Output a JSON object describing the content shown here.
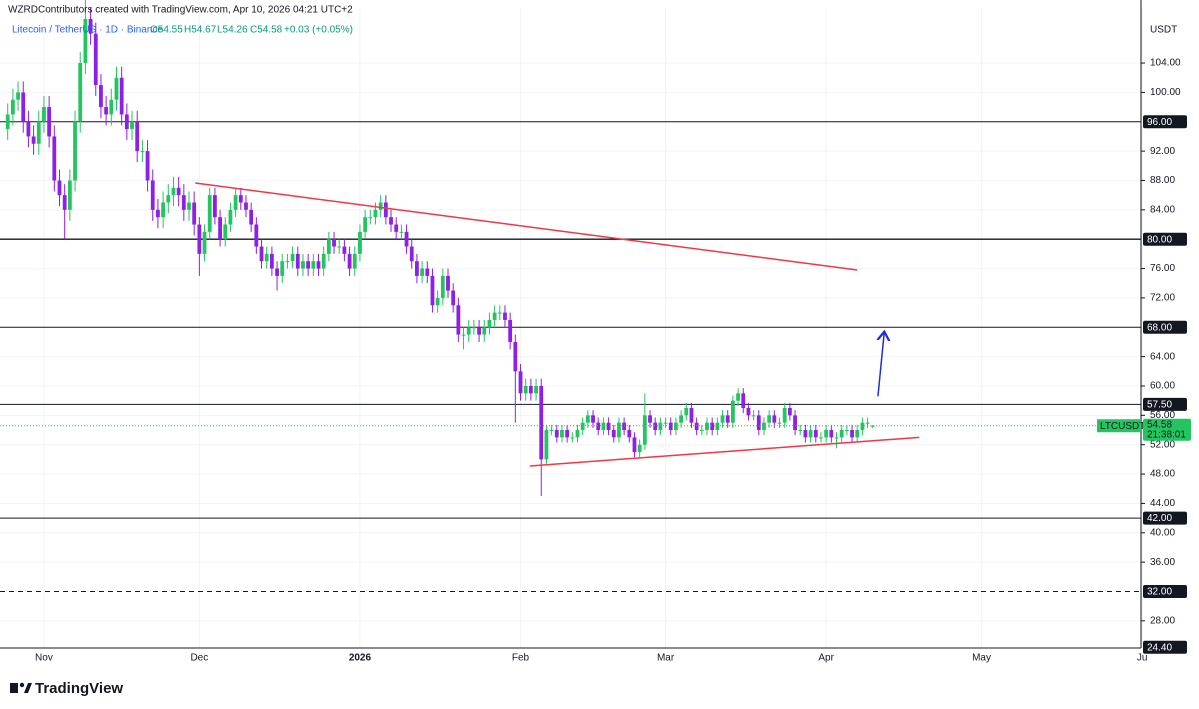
{
  "header": {
    "attribution": "WZRDContributors created with TradingView.com, Apr 10, 2026 04:21 UTC+2",
    "symbol": "Litecoin / TetherUS · 1D · Binance",
    "ohlc": [
      "O54.55",
      "H54.67",
      "L54.26",
      "C54.58",
      "+0.03 (+0.05%)"
    ]
  },
  "footer": {
    "brand": "TradingView"
  },
  "chart_data": {
    "type": "candlestick",
    "y_unit": "USDT",
    "up_color": "#22c55e",
    "down_color": "#8f1ee6",
    "grid": true,
    "ylim": [
      24.3,
      111.5
    ],
    "yticks": [
      {
        "value": 104,
        "label": "104.00"
      },
      {
        "value": 100,
        "label": "100.00"
      },
      {
        "value": 92,
        "label": "92.00"
      },
      {
        "value": 88,
        "label": "88.00"
      },
      {
        "value": 84,
        "label": "84.00"
      },
      {
        "value": 76,
        "label": "76.00"
      },
      {
        "value": 72,
        "label": "72.00"
      },
      {
        "value": 64,
        "label": "64.00"
      },
      {
        "value": 60,
        "label": "60.00"
      },
      {
        "value": 56,
        "label": "56.00"
      },
      {
        "value": 52,
        "label": "52.00"
      },
      {
        "value": 48,
        "label": "48.00"
      },
      {
        "value": 44,
        "label": "44.00"
      },
      {
        "value": 40,
        "label": "40.00"
      },
      {
        "value": 36,
        "label": "36.00"
      },
      {
        "value": 28,
        "label": "28.00"
      }
    ],
    "hlines": [
      {
        "value": 96,
        "label": "96.00",
        "style": "solid"
      },
      {
        "value": 80,
        "label": "80.00",
        "style": "solid"
      },
      {
        "value": 68,
        "label": "68.00",
        "style": "solid"
      },
      {
        "value": 57.5,
        "label": "57.50",
        "style": "solid"
      },
      {
        "value": 42,
        "label": "42.00",
        "style": "solid"
      },
      {
        "value": 32,
        "label": "32.00",
        "style": "dashed"
      }
    ],
    "axis_markers": [
      {
        "value": 24.4,
        "label": "24.40"
      }
    ],
    "last_price": 54.58,
    "last_symbol": "LTCUSDT",
    "countdown": "21:38:01",
    "last_color": "#22c55e",
    "drawings": [
      {
        "color": "#f23645",
        "arrow": false,
        "points": [
          [
            36.2,
            87.65
          ],
          [
            164,
            75.8
          ]
        ]
      },
      {
        "color": "#f23645",
        "arrow": false,
        "points": [
          [
            100.8,
            49.1
          ],
          [
            176,
            53.0
          ]
        ]
      },
      {
        "color": "#1e2fd6",
        "arrow": true,
        "points": [
          [
            168,
            58.6
          ],
          [
            169.2,
            67.2
          ]
        ]
      }
    ],
    "categories": [
      null,
      null,
      null,
      null,
      null,
      null,
      null,
      "Nov",
      null,
      null,
      null,
      null,
      null,
      null,
      null,
      null,
      null,
      null,
      null,
      null,
      null,
      null,
      null,
      null,
      null,
      null,
      null,
      null,
      null,
      null,
      null,
      null,
      null,
      null,
      null,
      null,
      null,
      "Dec",
      null,
      null,
      null,
      null,
      null,
      null,
      null,
      null,
      null,
      null,
      null,
      null,
      null,
      null,
      null,
      null,
      null,
      null,
      null,
      null,
      null,
      null,
      null,
      null,
      null,
      null,
      null,
      null,
      null,
      null,
      "2026",
      null,
      null,
      null,
      null,
      null,
      null,
      null,
      null,
      null,
      null,
      null,
      null,
      null,
      null,
      null,
      null,
      null,
      null,
      null,
      null,
      null,
      null,
      null,
      null,
      null,
      null,
      null,
      null,
      null,
      null,
      "Feb",
      null,
      null,
      null,
      null,
      null,
      null,
      null,
      null,
      null,
      null,
      null,
      null,
      null,
      null,
      null,
      null,
      null,
      null,
      null,
      null,
      null,
      null,
      null,
      null,
      null,
      null,
      null,
      "Mar",
      null,
      null,
      null,
      null,
      null,
      null,
      null,
      null,
      null,
      null,
      null,
      null,
      null,
      null,
      null,
      null,
      null,
      null,
      null,
      null,
      null,
      null,
      null,
      null,
      null,
      null,
      null,
      null,
      null,
      null,
      "Apr",
      null,
      null,
      null,
      null,
      null,
      null,
      null,
      null,
      null,
      null,
      null,
      null,
      null,
      null,
      null,
      null,
      null,
      null,
      null,
      null,
      null,
      null,
      null,
      null,
      null,
      null,
      null,
      null,
      null,
      "May",
      null,
      null,
      null,
      null,
      null,
      null,
      null,
      null,
      null,
      null,
      null,
      null,
      null,
      null,
      null,
      null,
      null,
      null,
      null,
      null,
      null,
      null,
      null,
      null,
      null,
      null,
      null,
      null,
      null,
      null,
      "Ju"
    ],
    "open": [
      95,
      97,
      99,
      100,
      96,
      94,
      93,
      96,
      98,
      94,
      88,
      86,
      84,
      88,
      96,
      104,
      110,
      108,
      101,
      98,
      97,
      99,
      102,
      97,
      95,
      96,
      92,
      92,
      88,
      84,
      83,
      85,
      86,
      87,
      86,
      84,
      85,
      82,
      78,
      81,
      86,
      83,
      80,
      82,
      84,
      86,
      85,
      84,
      82,
      79,
      77,
      78,
      76,
      75,
      77,
      77,
      78,
      76,
      77,
      76,
      77,
      76,
      78,
      80,
      79,
      79,
      78,
      76,
      78,
      81,
      83,
      83,
      84,
      85,
      83,
      82,
      81,
      81,
      79,
      77,
      75,
      76,
      75,
      71,
      72,
      75,
      73,
      71,
      67,
      67,
      68,
      68,
      67,
      68,
      69,
      70,
      70,
      69,
      66,
      62,
      59,
      60,
      59,
      60,
      50,
      54,
      54,
      53,
      54,
      53,
      53,
      54,
      55,
      56,
      55,
      54,
      55,
      54,
      53,
      55,
      54,
      53,
      51,
      52,
      56,
      55,
      54,
      55,
      55,
      54,
      55,
      56,
      57,
      55,
      54,
      54,
      55,
      54,
      55,
      56,
      55,
      58,
      59,
      57,
      56,
      56,
      54,
      55,
      56,
      55,
      55,
      57,
      56,
      54,
      54,
      53,
      54,
      53,
      53,
      54,
      53,
      53,
      54,
      54,
      53,
      54,
      55,
      54.55,
      null,
      null,
      null,
      null,
      null,
      null,
      null,
      null,
      null,
      null,
      null,
      null,
      null,
      null,
      null,
      null,
      null,
      null,
      null,
      null,
      null,
      null,
      null,
      null,
      null,
      null,
      null,
      null,
      null,
      null,
      null,
      null,
      null,
      null,
      null,
      null,
      null,
      null,
      null,
      null,
      null,
      null,
      null,
      null,
      null,
      null,
      null,
      null,
      null,
      null,
      null,
      null
    ],
    "high": [
      98.5,
      100.5,
      101.5,
      101.5,
      97.5,
      95.5,
      97.5,
      99.5,
      99.5,
      95.5,
      89.5,
      87.5,
      89.5,
      97.5,
      105.5,
      113,
      111.5,
      109.5,
      102.5,
      99.5,
      100.5,
      103.5,
      103.5,
      98.5,
      97.5,
      97.5,
      93.5,
      93.5,
      89.5,
      85.5,
      86.5,
      87.5,
      88.5,
      88.5,
      87.5,
      86.5,
      86.5,
      83,
      82,
      87,
      87,
      84,
      83,
      85,
      87,
      87,
      86,
      85,
      83,
      80,
      79,
      79,
      77,
      78,
      78,
      79,
      79,
      78,
      78,
      78,
      78,
      79,
      81,
      81,
      80,
      80,
      79,
      79,
      82,
      84,
      84,
      85,
      86,
      86,
      84,
      83,
      82,
      82,
      80,
      78,
      77,
      77,
      76,
      73,
      76,
      76,
      74,
      72,
      68,
      69,
      69,
      69,
      69,
      70,
      71,
      71,
      71,
      70,
      67,
      63,
      61,
      61,
      61,
      61,
      54.7,
      54.7,
      54.7,
      54.7,
      54.7,
      53.7,
      54.7,
      55.7,
      56.7,
      56.7,
      55.7,
      55.7,
      55.7,
      54.7,
      55.7,
      55.7,
      54.7,
      53.7,
      52.7,
      59,
      56.7,
      55.7,
      55.7,
      55.7,
      55.7,
      55.7,
      56.7,
      57.7,
      57.7,
      55.7,
      54.7,
      55.7,
      55.7,
      55.7,
      56.7,
      56.7,
      58.7,
      59.7,
      59.7,
      57.7,
      56.7,
      56.7,
      55.7,
      56.7,
      56.7,
      55.7,
      57.7,
      57.7,
      56.7,
      54.7,
      54.7,
      54.7,
      54.7,
      53.7,
      54.7,
      54.7,
      53.7,
      54.7,
      54.7,
      54.7,
      54.7,
      55.7,
      55.7,
      54.67,
      null,
      null,
      null,
      null,
      null,
      null,
      null,
      null,
      null,
      null,
      null,
      null,
      null,
      null,
      null,
      null,
      null,
      null,
      null,
      null,
      null,
      null,
      null,
      null,
      null,
      null,
      null,
      null,
      null,
      null,
      null,
      null,
      null,
      null,
      null,
      null,
      null,
      null,
      null,
      null,
      null,
      null,
      null,
      null,
      null,
      null,
      null,
      null,
      null,
      null,
      null,
      null
    ],
    "low": [
      93.5,
      95.5,
      97.5,
      94.5,
      92.5,
      91.5,
      91.5,
      94.5,
      92.5,
      86.5,
      84.5,
      80,
      82.5,
      86.5,
      94.5,
      102.5,
      106.5,
      99.5,
      96.5,
      95.5,
      95.5,
      97.5,
      95.5,
      93.5,
      93.5,
      90.5,
      90.5,
      86.5,
      82.5,
      81.5,
      81.5,
      83.5,
      84.5,
      84.5,
      82.5,
      82.5,
      80.5,
      75,
      77,
      80,
      82,
      79,
      79,
      81,
      83,
      84,
      83,
      81,
      78,
      76,
      76,
      75,
      73,
      74,
      76,
      76,
      75,
      75,
      75,
      75,
      75,
      75,
      77,
      78,
      78,
      77,
      75,
      75,
      77,
      80,
      82,
      82,
      83,
      82,
      81,
      80,
      80,
      78,
      76,
      74,
      74,
      74,
      70,
      70,
      71,
      72,
      70,
      66,
      65,
      66,
      67,
      66,
      66,
      67,
      68,
      69,
      68,
      65,
      55,
      58,
      58,
      58,
      58,
      45,
      49.3,
      53.3,
      52.3,
      52.3,
      52.3,
      52.3,
      52.3,
      53.3,
      54.3,
      54.3,
      53.3,
      53.3,
      53.3,
      52.3,
      52.3,
      53.3,
      52.3,
      50.3,
      50.3,
      51.3,
      54.3,
      53.3,
      53.3,
      54.3,
      53.3,
      53.3,
      54.3,
      55.3,
      54.3,
      53.3,
      53.3,
      53.3,
      53.3,
      53.3,
      54.3,
      54.3,
      54.3,
      57.3,
      56.3,
      55.3,
      55.3,
      53.3,
      53.3,
      54.3,
      54.3,
      54.3,
      54.3,
      55.3,
      53.3,
      53.3,
      52.3,
      52.3,
      52.3,
      52.3,
      52.3,
      52.3,
      51.5,
      52.3,
      53.3,
      52.3,
      52.3,
      53.3,
      54.3,
      54.26,
      null,
      null,
      null,
      null,
      null,
      null,
      null,
      null,
      null,
      null,
      null,
      null,
      null,
      null,
      null,
      null,
      null,
      null,
      null,
      null,
      null,
      null,
      null,
      null,
      null,
      null,
      null,
      null,
      null,
      null,
      null,
      null,
      null,
      null,
      null,
      null,
      null,
      null,
      null,
      null,
      null,
      null,
      null,
      null,
      null,
      null,
      null,
      null,
      null,
      null,
      null,
      null
    ],
    "close": [
      97,
      99,
      100,
      96,
      94,
      93,
      96,
      98,
      94,
      88,
      86,
      84,
      88,
      96,
      104,
      110,
      108,
      101,
      98,
      97,
      99,
      102,
      97,
      95,
      96,
      92,
      92,
      88,
      84,
      83,
      85,
      86,
      87,
      86,
      84,
      85,
      82,
      78,
      81,
      86,
      83,
      80,
      82,
      84,
      86,
      85,
      84,
      82,
      79,
      77,
      78,
      76,
      75,
      77,
      77,
      78,
      76,
      77,
      76,
      77,
      76,
      78,
      80,
      79,
      79,
      78,
      76,
      78,
      81,
      83,
      83,
      84,
      85,
      83,
      82,
      81,
      81,
      79,
      77,
      75,
      76,
      75,
      71,
      72,
      75,
      73,
      71,
      67,
      67,
      68,
      68,
      67,
      68,
      69,
      70,
      70,
      69,
      66,
      62,
      59,
      60,
      59,
      60,
      50,
      54,
      54,
      53,
      54,
      53,
      53,
      54,
      55,
      56,
      55,
      54,
      55,
      54,
      53,
      55,
      54,
      53,
      51,
      52,
      56,
      55,
      54,
      55,
      55,
      54,
      55,
      56,
      57,
      55,
      54,
      54,
      55,
      54,
      55,
      56,
      55,
      58,
      59,
      57,
      56,
      56,
      54,
      55,
      56,
      55,
      55,
      57,
      56,
      54,
      54,
      53,
      54,
      53,
      53,
      54,
      53,
      53,
      54,
      54,
      53,
      54,
      55,
      55,
      54.58,
      null,
      null,
      null,
      null,
      null,
      null,
      null,
      null,
      null,
      null,
      null,
      null,
      null,
      null,
      null,
      null,
      null,
      null,
      null,
      null,
      null,
      null,
      null,
      null,
      null,
      null,
      null,
      null,
      null,
      null,
      null,
      null,
      null,
      null,
      null,
      null,
      null,
      null,
      null,
      null,
      null,
      null,
      null,
      null,
      null,
      null,
      null,
      null,
      null,
      null,
      null,
      null
    ]
  }
}
